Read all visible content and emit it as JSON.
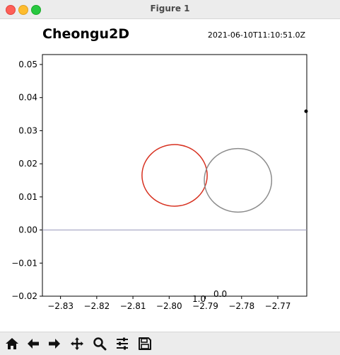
{
  "window": {
    "title": "Figure 1"
  },
  "figure": {
    "title": "Cheongu2D",
    "timestamp": "2021-06-10T11:10:51.0Z",
    "overlap_labels": [
      "1.0",
      "0.0"
    ],
    "colors": {
      "red_circle": "#d7301f",
      "gray_circle": "#8c8c8c",
      "zero_line": "#9999bb",
      "axes": "#000000"
    }
  },
  "chart_data": {
    "type": "line",
    "xlim": [
      -2.835,
      -2.762
    ],
    "ylim": [
      -0.02,
      0.053
    ],
    "x_ticks": [
      -2.83,
      -2.82,
      -2.81,
      -2.8,
      -2.79,
      -2.78,
      -2.77
    ],
    "x_tick_labels": [
      "−2.83",
      "−2.82",
      "−2.81",
      "−2.80",
      "−2.79",
      "−2.78",
      "−2.77"
    ],
    "y_ticks": [
      -0.02,
      -0.01,
      0.0,
      0.01,
      0.02,
      0.03,
      0.04,
      0.05
    ],
    "y_tick_labels": [
      "−0.02",
      "−0.01",
      "0.00",
      "0.01",
      "0.02",
      "0.03",
      "0.04",
      "0.05"
    ],
    "hlines": [
      0.0
    ],
    "grid": false,
    "series": [
      {
        "shape": "ellipse",
        "center_x": -2.7985,
        "center_y": 0.0165,
        "radius_x": 0.009,
        "radius_y": 0.0093,
        "color": "#d7301f"
      },
      {
        "shape": "ellipse",
        "center_x": -2.781,
        "center_y": 0.015,
        "radius_x": 0.0093,
        "radius_y": 0.0096,
        "color": "#8c8c8c"
      }
    ]
  },
  "toolbar": {
    "buttons": [
      {
        "icon": "home-icon"
      },
      {
        "icon": "back-arrow-icon"
      },
      {
        "icon": "forward-arrow-icon"
      },
      {
        "icon": "pan-move-icon"
      },
      {
        "icon": "zoom-magnifier-icon"
      },
      {
        "icon": "configure-subplots-icon"
      },
      {
        "icon": "save-floppy-icon"
      }
    ]
  }
}
